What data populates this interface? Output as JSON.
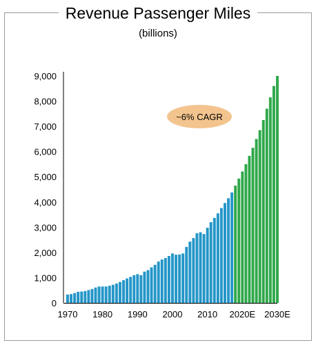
{
  "chart_data": {
    "type": "bar",
    "title": "Revenue Passenger Miles",
    "subtitle": "(billions)",
    "annotation": "~6% CAGR",
    "colors": {
      "historical": "#2496C8",
      "forecast": "#2FA84A",
      "badge": "#F3C48E"
    },
    "ylim": [
      0,
      9000
    ],
    "yticks": [
      "0",
      "1,000",
      "2,000",
      "3,000",
      "4,000",
      "5,000",
      "6,000",
      "7,000",
      "8,000",
      "9,000"
    ],
    "xticks": [
      {
        "year": 1970,
        "label": "1970"
      },
      {
        "year": 1980,
        "label": "1980"
      },
      {
        "year": 1990,
        "label": "1990"
      },
      {
        "year": 2000,
        "label": "2000"
      },
      {
        "year": 2010,
        "label": "2010"
      },
      {
        "year": 2020,
        "label": "2020E"
      },
      {
        "year": 2030,
        "label": "2030E"
      }
    ],
    "grid": false,
    "series": [
      {
        "kind": "historical",
        "x": [
          1970,
          1971,
          1972,
          1973,
          1974,
          1975,
          1976,
          1977,
          1978,
          1979,
          1980,
          1981,
          1982,
          1983,
          1984,
          1985,
          1986,
          1987,
          1988,
          1989,
          1990,
          1991,
          1992,
          1993,
          1994,
          1995,
          1996,
          1997,
          1998,
          1999,
          2000,
          2001,
          2002,
          2003,
          2004,
          2005,
          2006,
          2007,
          2008,
          2009,
          2010,
          2011,
          2012,
          2013,
          2014,
          2015,
          2016,
          2017
        ],
        "values": [
          330,
          350,
          390,
          440,
          450,
          470,
          510,
          550,
          610,
          650,
          650,
          650,
          680,
          720,
          770,
          830,
          900,
          970,
          1030,
          1100,
          1140,
          1100,
          1240,
          1300,
          1410,
          1510,
          1640,
          1720,
          1780,
          1860,
          1960,
          1910,
          1920,
          1960,
          2220,
          2430,
          2570,
          2760,
          2800,
          2730,
          2980,
          3200,
          3370,
          3550,
          3760,
          3960,
          4150,
          4380
        ]
      },
      {
        "kind": "forecast",
        "x": [
          2018,
          2019,
          2020,
          2021,
          2022,
          2023,
          2024,
          2025,
          2026,
          2027,
          2028,
          2029,
          2030
        ],
        "values": [
          4650,
          4930,
          5210,
          5500,
          5830,
          6150,
          6500,
          6850,
          7250,
          7700,
          8150,
          8600,
          9000
        ]
      }
    ]
  }
}
